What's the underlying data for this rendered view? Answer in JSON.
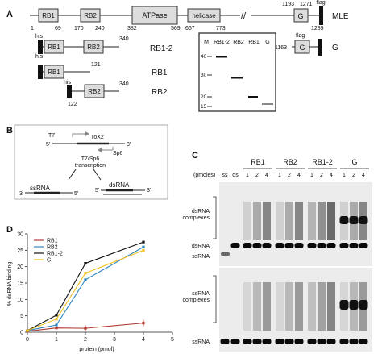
{
  "panels": {
    "A": "A",
    "B": "B",
    "C": "C",
    "D": "D"
  },
  "panel_a": {
    "domains": [
      "RB1",
      "RB2",
      "ATPase",
      "helicase"
    ],
    "full_length_label": "MLE",
    "positions": [
      "1",
      "69",
      "170",
      "240",
      "382",
      "569",
      "667",
      "773",
      "1193",
      "1271",
      "1289"
    ],
    "g_domain": "G",
    "flag": "flag",
    "his": "his",
    "constructs": [
      {
        "label": "RB1-2",
        "end": "340",
        "start": ""
      },
      {
        "label": "RB1",
        "end": "121",
        "start": ""
      },
      {
        "label": "RB2",
        "end": "340",
        "start": "122"
      },
      {
        "label": "G",
        "end": "",
        "start": "1163"
      }
    ],
    "gel_lanes": [
      "M",
      "RB1-2",
      "RB2",
      "RB1",
      "G"
    ],
    "gel_markers": [
      "40",
      "30",
      "20",
      "15"
    ]
  },
  "panel_b": {
    "t7": "T7",
    "sp6": "Sp6",
    "roX2": "roX2",
    "five_prime": "5'",
    "three_prime": "3'",
    "transcription": "T7/Sp6\ntranscription",
    "ssrna": "ssRNA",
    "dsrna": "dsRNA"
  },
  "panel_c": {
    "groups": [
      "RB1",
      "RB2",
      "RB1-2",
      "G"
    ],
    "pmoles_label": "(pmoles)",
    "controls": [
      "ss",
      "ds"
    ],
    "amounts": [
      "1",
      "2",
      "4"
    ],
    "left_labels": [
      "dsRNA\ncomplexes",
      "dsRNA",
      "ssRNA",
      "ssRNA\ncomplexes",
      "ssRNA"
    ]
  },
  "chart_data": {
    "type": "line",
    "xlabel": "protein (pmol)",
    "ylabel": "% dsRNA binding",
    "xlim": [
      0,
      5
    ],
    "ylim": [
      0,
      30
    ],
    "xticks": [
      0,
      1,
      2,
      3,
      4,
      5
    ],
    "yticks": [
      0,
      5,
      10,
      15,
      20,
      25,
      30
    ],
    "legend_position": "top-left",
    "x": [
      0,
      1,
      2,
      4
    ],
    "series": [
      {
        "name": "RB1",
        "color": "#b03a2e",
        "values": [
          0.3,
          1.3,
          1.2,
          2.8
        ],
        "x": [
          0,
          1,
          2,
          4
        ]
      },
      {
        "name": "RB2",
        "color": "#2e86c1",
        "values": [
          0.5,
          2.2,
          16,
          26
        ],
        "x": [
          0,
          1,
          2,
          4
        ]
      },
      {
        "name": "RB1-2",
        "color": "#111111",
        "values": [
          0.5,
          5.2,
          21,
          27.5
        ],
        "x": [
          0,
          1,
          2,
          4
        ]
      },
      {
        "name": "G",
        "color": "#f0c020",
        "values": [
          0.5,
          4,
          18,
          25
        ],
        "x": [
          0,
          1,
          2,
          4
        ]
      }
    ]
  }
}
